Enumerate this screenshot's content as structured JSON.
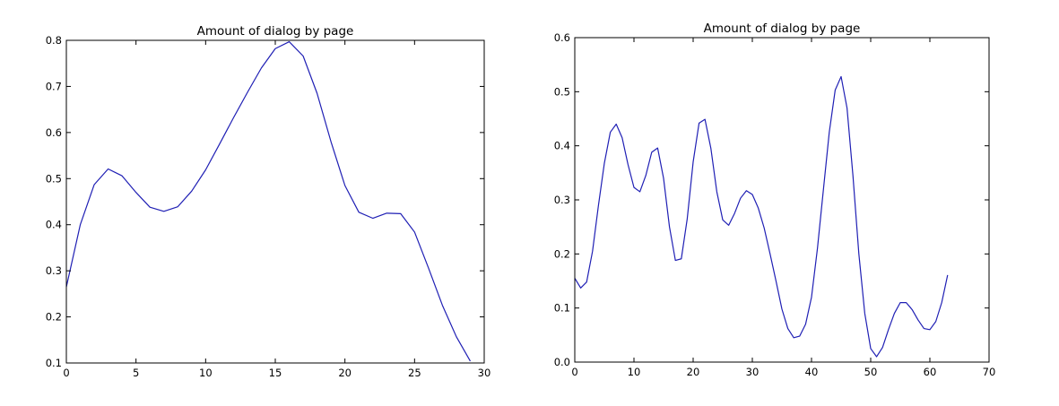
{
  "chart_data": [
    {
      "type": "line",
      "title": "Amount of dialog by page",
      "xlabel": "",
      "ylabel": "",
      "xlim": [
        0,
        30
      ],
      "ylim": [
        0.1,
        0.8
      ],
      "xticks": [
        0,
        5,
        10,
        15,
        20,
        25,
        30
      ],
      "xtick_labels": [
        "0",
        "5",
        "10",
        "15",
        "20",
        "25",
        "30"
      ],
      "yticks": [
        0.1,
        0.2,
        0.3,
        0.4,
        0.5,
        0.6,
        0.7,
        0.8
      ],
      "ytick_labels": [
        "0.1",
        "0.2",
        "0.3",
        "0.4",
        "0.5",
        "0.6",
        "0.7",
        "0.8"
      ],
      "grid": false,
      "series": [
        {
          "color": "#1f1fb4",
          "x": [
            0,
            1,
            2,
            3,
            4,
            5,
            6,
            7,
            8,
            9,
            10,
            11,
            12,
            13,
            14,
            15,
            16,
            17,
            18,
            19,
            20,
            21,
            22,
            23,
            24,
            25,
            26,
            27,
            28,
            29
          ],
          "y": [
            0.265,
            0.4,
            0.487,
            0.521,
            0.506,
            0.47,
            0.438,
            0.429,
            0.439,
            0.473,
            0.519,
            0.575,
            0.632,
            0.687,
            0.74,
            0.782,
            0.797,
            0.766,
            0.685,
            0.58,
            0.485,
            0.427,
            0.414,
            0.425,
            0.424,
            0.384,
            0.306,
            0.225,
            0.157,
            0.104
          ]
        }
      ]
    },
    {
      "type": "line",
      "title": "Amount of dialog by page",
      "xlabel": "",
      "ylabel": "",
      "xlim": [
        0,
        70
      ],
      "ylim": [
        0.0,
        0.6
      ],
      "xticks": [
        0,
        10,
        20,
        30,
        40,
        50,
        60,
        70
      ],
      "xtick_labels": [
        "0",
        "10",
        "20",
        "30",
        "40",
        "50",
        "60",
        "70"
      ],
      "yticks": [
        0.0,
        0.1,
        0.2,
        0.3,
        0.4,
        0.5,
        0.6
      ],
      "ytick_labels": [
        "0.0",
        "0.1",
        "0.2",
        "0.3",
        "0.4",
        "0.5",
        "0.6"
      ],
      "grid": false,
      "series": [
        {
          "color": "#1f1fb4",
          "x": [
            0,
            1,
            2,
            3,
            4,
            5,
            6,
            7,
            8,
            9,
            10,
            11,
            12,
            13,
            14,
            15,
            16,
            17,
            18,
            19,
            20,
            21,
            22,
            23,
            24,
            25,
            26,
            27,
            28,
            29,
            30,
            31,
            32,
            33,
            34,
            35,
            36,
            37,
            38,
            39,
            40,
            41,
            42,
            43,
            44,
            45,
            46,
            47,
            48,
            49,
            50,
            51,
            52,
            53,
            54,
            55,
            56,
            57,
            58,
            59,
            60,
            61,
            62,
            63
          ],
          "y": [
            0.155,
            0.137,
            0.148,
            0.205,
            0.29,
            0.368,
            0.425,
            0.44,
            0.415,
            0.365,
            0.323,
            0.315,
            0.345,
            0.388,
            0.396,
            0.34,
            0.25,
            0.188,
            0.191,
            0.265,
            0.37,
            0.442,
            0.449,
            0.395,
            0.315,
            0.263,
            0.253,
            0.275,
            0.303,
            0.317,
            0.31,
            0.285,
            0.248,
            0.2,
            0.15,
            0.098,
            0.062,
            0.045,
            0.048,
            0.07,
            0.12,
            0.21,
            0.318,
            0.425,
            0.503,
            0.528,
            0.47,
            0.345,
            0.2,
            0.09,
            0.025,
            0.01,
            0.027,
            0.06,
            0.09,
            0.11,
            0.11,
            0.097,
            0.078,
            0.062,
            0.06,
            0.075,
            0.11,
            0.161
          ]
        }
      ]
    }
  ]
}
